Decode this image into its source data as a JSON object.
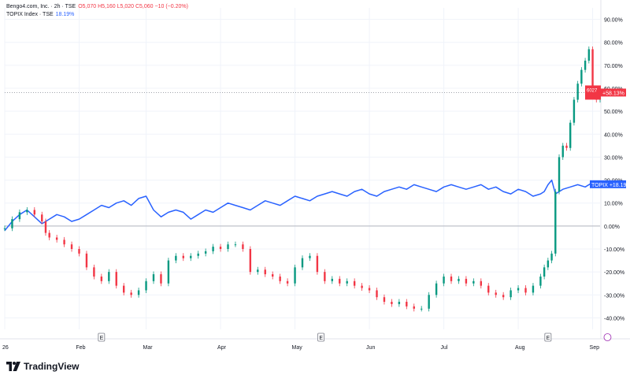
{
  "legend": {
    "symbol": "Bengo4.com, Inc. · 2h · TSE",
    "ohlc": "O5,070 H5,160 L5,020 C5,060 −10 (−0.20%)",
    "topix_name": "TOPIX Index · TSE",
    "topix_value": "18.19%"
  },
  "brand": {
    "text": "TradingView"
  },
  "colors": {
    "up": "#089981",
    "down": "#f23645",
    "topix": "#2962ff",
    "grid": "#f0f3fa",
    "zero": "#b2b5be"
  },
  "chart_data": {
    "type": "line",
    "title": "",
    "ylabel": "",
    "ylim": [
      -45,
      95
    ],
    "y_ticks": [
      "90.00%",
      "80.00%",
      "70.00%",
      "60.00%",
      "50.00%",
      "40.00%",
      "30.00%",
      "20.00%",
      "10.00%",
      "0.00%",
      "-10.00%",
      "-20.00%",
      "-30.00%",
      "-40.00%"
    ],
    "y_tick_values": [
      90,
      80,
      70,
      60,
      50,
      40,
      30,
      20,
      10,
      0,
      -10,
      -20,
      -30,
      -40
    ],
    "x_ticks": [
      "26",
      "Feb",
      "Mar",
      "Apr",
      "May",
      "Jun",
      "Jul",
      "Aug",
      "Sep"
    ],
    "x_tick_values": [
      0,
      20,
      38,
      58,
      78,
      98,
      118,
      138,
      158
    ],
    "xlim": [
      0,
      160
    ],
    "event_markers": [
      {
        "label": "E",
        "x": 26
      },
      {
        "label": "E",
        "x": 85
      },
      {
        "label": "E",
        "x": 146
      }
    ],
    "dividend_marker": {
      "label": "?",
      "x": 162
    },
    "series": [
      {
        "name": "Bengo4.com, Inc.",
        "style": "candles",
        "x": [
          0,
          2,
          4,
          6,
          8,
          10,
          11,
          12,
          14,
          16,
          18,
          20,
          22,
          24,
          26,
          28,
          30,
          32,
          34,
          36,
          38,
          40,
          42,
          44,
          46,
          48,
          50,
          52,
          54,
          56,
          58,
          60,
          62,
          64,
          66,
          68,
          70,
          72,
          74,
          76,
          78,
          80,
          82,
          84,
          86,
          88,
          90,
          92,
          94,
          96,
          98,
          100,
          102,
          104,
          106,
          108,
          110,
          112,
          114,
          116,
          118,
          120,
          122,
          124,
          126,
          128,
          130,
          132,
          134,
          136,
          138,
          140,
          142,
          144,
          145,
          146,
          147,
          148,
          149,
          150,
          151,
          152,
          153,
          154,
          155,
          156,
          157,
          158,
          159,
          160
        ],
        "values": [
          -1,
          3,
          6,
          7,
          5,
          2,
          -3,
          -5,
          -6,
          -8,
          -10,
          -12,
          -18,
          -22,
          -24,
          -20,
          -26,
          -29,
          -30,
          -28,
          -24,
          -21,
          -25,
          -15,
          -13,
          -14,
          -13,
          -12,
          -11,
          -9,
          -10,
          -8,
          -8,
          -10,
          -20,
          -19,
          -21,
          -22,
          -24,
          -25,
          -18,
          -14,
          -13,
          -20,
          -24,
          -23,
          -25,
          -24,
          -26,
          -27,
          -28,
          -31,
          -33,
          -34,
          -33,
          -35,
          -36,
          -36,
          -30,
          -25,
          -22,
          -24,
          -23,
          -25,
          -24,
          -26,
          -29,
          -30,
          -31,
          -28,
          -27,
          -29,
          -26,
          -22,
          -18,
          -15,
          -12,
          15,
          30,
          35,
          34,
          45,
          55,
          62,
          68,
          72,
          77,
          60,
          55,
          58
        ]
      },
      {
        "name": "TOPIX Index",
        "style": "line",
        "x": [
          0,
          2,
          4,
          6,
          8,
          10,
          12,
          14,
          16,
          18,
          20,
          22,
          24,
          26,
          28,
          30,
          32,
          34,
          36,
          38,
          40,
          42,
          44,
          46,
          48,
          50,
          52,
          54,
          56,
          58,
          60,
          62,
          64,
          66,
          68,
          70,
          72,
          74,
          76,
          78,
          80,
          82,
          84,
          86,
          88,
          90,
          92,
          94,
          96,
          98,
          100,
          102,
          104,
          106,
          108,
          110,
          112,
          114,
          116,
          118,
          120,
          122,
          124,
          126,
          128,
          130,
          132,
          134,
          136,
          138,
          140,
          142,
          144,
          145,
          146,
          147,
          148,
          150,
          152,
          154,
          156,
          158,
          160
        ],
        "values": [
          -2,
          2,
          5,
          7,
          4,
          1,
          3,
          5,
          4,
          2,
          3,
          5,
          7,
          9,
          8,
          10,
          11,
          9,
          12,
          13,
          7,
          4,
          6,
          7,
          6,
          3,
          5,
          7,
          6,
          8,
          10,
          9,
          8,
          7,
          9,
          11,
          10,
          9,
          11,
          13,
          12,
          11,
          13,
          14,
          15,
          14,
          13,
          15,
          16,
          14,
          13,
          15,
          16,
          17,
          16,
          18,
          17,
          16,
          15,
          17,
          18,
          17,
          16,
          17,
          18,
          16,
          17,
          15,
          14,
          16,
          15,
          13,
          14,
          15,
          18,
          20,
          14,
          16,
          17,
          18,
          17,
          19,
          18
        ]
      }
    ],
    "last_price_label": {
      "price": "6027",
      "change": "+58.13%",
      "value": 58.13
    },
    "topix_label": {
      "name": "TOPIX",
      "change": "+18.19%",
      "value": 18.19
    }
  }
}
